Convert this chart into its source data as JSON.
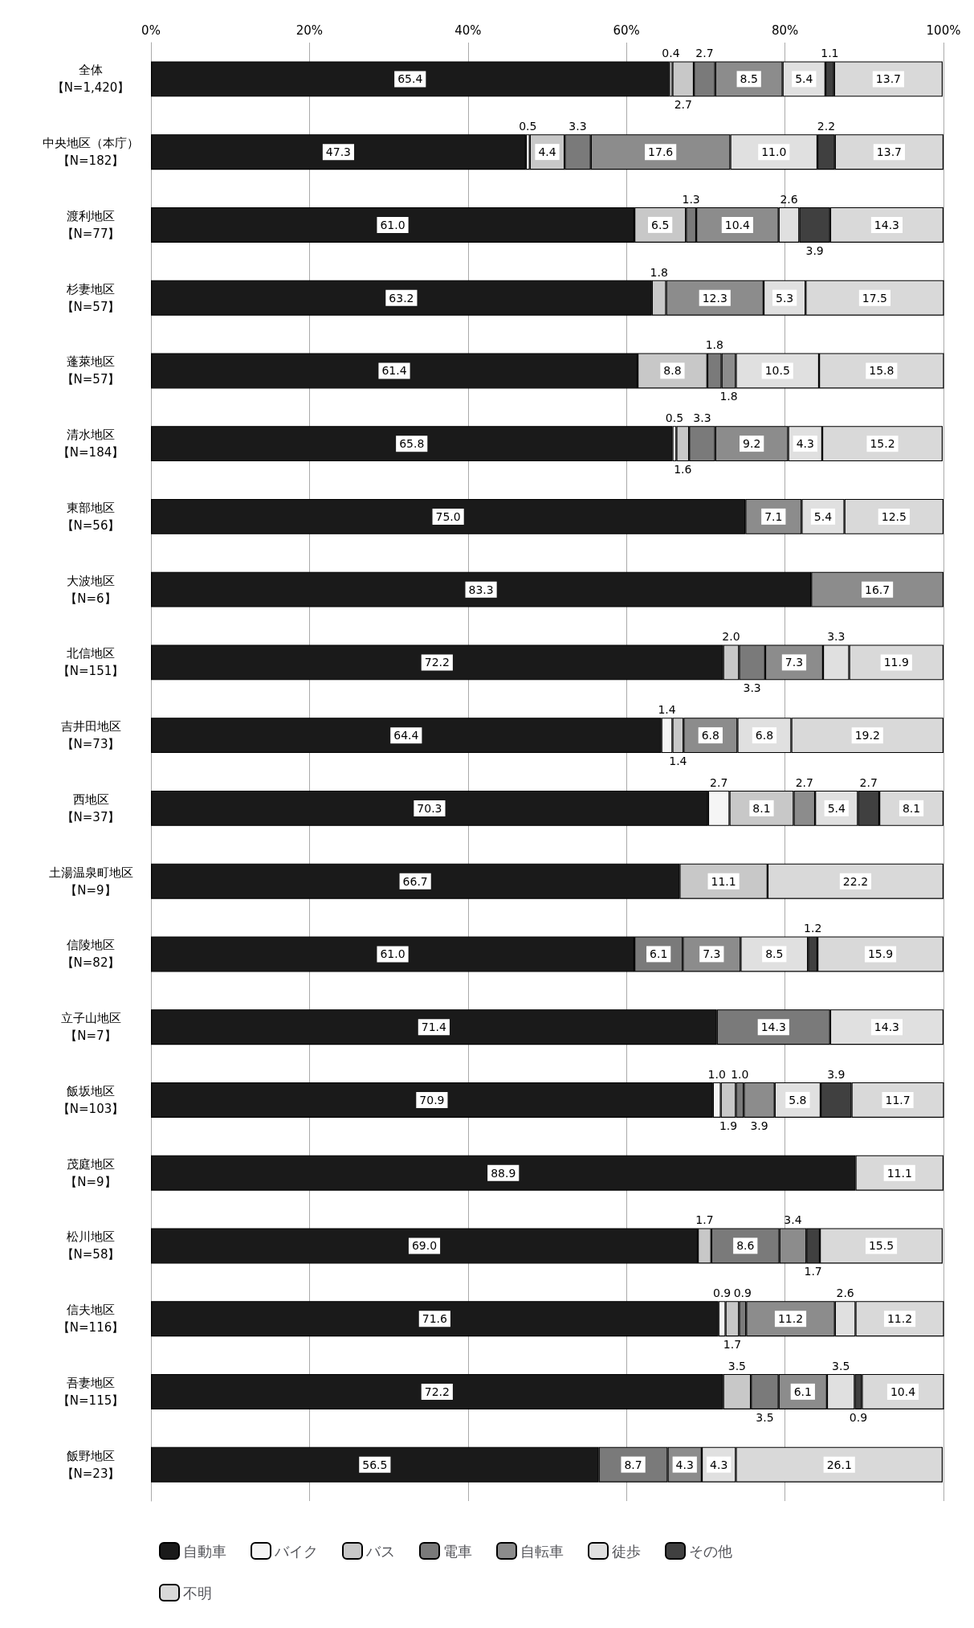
{
  "chart_data": {
    "type": "bar",
    "orientation": "horizontal",
    "stacked": true,
    "categories": [
      "全体【N=1,420】",
      "中央地区（本庁）【N=182】",
      "渡利地区【N=77】",
      "杉妻地区【N=57】",
      "蓬萊地区【N=57】",
      "清水地区【N=184】",
      "東部地区【N=56】",
      "大波地区【N=6】",
      "北信地区【N=151】",
      "吉井田地区【N=73】",
      "西地区【N=37】",
      "土湯温泉町地区【N=9】",
      "信陵地区【N=82】",
      "立子山地区【N=7】",
      "飯坂地区【N=103】",
      "茂庭地区【N=9】",
      "松川地区【N=58】",
      "信夫地区【N=116】",
      "吾妻地区【N=115】",
      "飯野地区【N=23】"
    ],
    "series": [
      {
        "name": "自動車",
        "color": "#1a1a1a",
        "values": [
          65.4,
          47.3,
          61.0,
          63.2,
          61.4,
          65.8,
          75.0,
          83.3,
          72.2,
          64.4,
          70.3,
          66.7,
          61.0,
          71.4,
          70.9,
          88.9,
          69.0,
          71.6,
          72.2,
          56.5
        ],
        "value_labels": [
          "65.4",
          "47.3",
          "61.0",
          "63.2",
          "61.4",
          "65.8",
          "75.0",
          "83.3",
          "72.2",
          "64.4",
          "70.3",
          "66.7",
          "61.0",
          "71.4",
          "70.9",
          "88.9",
          "69.0",
          "71.6",
          "72.2",
          "56.5"
        ]
      },
      {
        "name": "バイク",
        "color": "#f5f5f5",
        "values": [
          0.4,
          0.5,
          null,
          null,
          null,
          0.5,
          null,
          null,
          null,
          1.4,
          2.7,
          null,
          null,
          null,
          1.0,
          null,
          null,
          0.9,
          null,
          null
        ],
        "value_labels": [
          "0.4",
          "0.5",
          null,
          null,
          null,
          "0.5",
          null,
          null,
          null,
          "1.4",
          "2.7",
          null,
          null,
          null,
          "1.0",
          null,
          null,
          "0.9",
          null,
          null
        ]
      },
      {
        "name": "バス",
        "color": "#c8c8c8",
        "values": [
          2.7,
          4.4,
          6.5,
          1.8,
          8.8,
          1.6,
          null,
          null,
          2.0,
          1.4,
          8.1,
          11.1,
          null,
          null,
          1.9,
          null,
          1.7,
          1.7,
          3.5,
          null
        ],
        "value_labels": [
          "2.7",
          "4.4",
          "6.5",
          "1.8",
          "8.8",
          "1.6",
          null,
          null,
          "2.0",
          "1.4",
          "8.1",
          "11.1",
          null,
          null,
          "1.9",
          null,
          "1.7",
          "1.7",
          "3.5",
          null
        ]
      },
      {
        "name": "電車",
        "color": "#7a7a7a",
        "values": [
          2.7,
          3.3,
          1.3,
          null,
          1.8,
          3.3,
          null,
          null,
          3.3,
          null,
          null,
          null,
          6.1,
          14.3,
          1.0,
          null,
          8.6,
          0.9,
          3.5,
          8.7
        ],
        "value_labels": [
          "2.7",
          "3.3",
          "1.3",
          null,
          "1.8",
          "3.3",
          null,
          null,
          "3.3",
          null,
          null,
          null,
          "6.1",
          "14.3",
          "1.0",
          null,
          "8.6",
          "0.9",
          "3.5",
          "8.7"
        ]
      },
      {
        "name": "自転車",
        "color": "#8c8c8c",
        "values": [
          8.5,
          17.6,
          10.4,
          12.3,
          1.8,
          9.2,
          7.1,
          16.7,
          7.3,
          6.8,
          2.7,
          null,
          7.3,
          null,
          3.9,
          null,
          3.4,
          11.2,
          6.1,
          4.3
        ],
        "value_labels": [
          "8.5",
          "17.6",
          "10.4",
          "12.3",
          "1.8",
          "9.2",
          "7.1",
          "16.7",
          "7.3",
          "6.8",
          "2.7",
          null,
          "7.3",
          null,
          "3.9",
          null,
          "3.4",
          "11.2",
          "6.1",
          "4.3"
        ]
      },
      {
        "name": "徒歩",
        "color": "#e0e0e0",
        "values": [
          5.4,
          11.0,
          2.6,
          5.3,
          10.5,
          4.3,
          5.4,
          null,
          3.3,
          6.8,
          5.4,
          null,
          8.5,
          14.3,
          5.8,
          null,
          null,
          2.6,
          3.5,
          4.3
        ],
        "value_labels": [
          "5.4",
          "11.0",
          "2.6",
          "5.3",
          "10.5",
          "4.3",
          "5.4",
          null,
          "3.3",
          "6.8",
          "5.4",
          null,
          "8.5",
          "14.3",
          "5.8",
          null,
          null,
          "2.6",
          "3.5",
          "4.3"
        ]
      },
      {
        "name": "その他",
        "color": "#404040",
        "values": [
          1.1,
          2.2,
          3.9,
          null,
          null,
          null,
          null,
          null,
          null,
          null,
          2.7,
          null,
          1.2,
          null,
          3.9,
          null,
          1.7,
          null,
          0.9,
          null
        ],
        "value_labels": [
          "1.1",
          "2.2",
          "3.9",
          null,
          null,
          null,
          null,
          null,
          null,
          null,
          "2.7",
          null,
          "1.2",
          null,
          "3.9",
          null,
          "1.7",
          null,
          "0.9",
          null
        ]
      },
      {
        "name": "不明",
        "color": "#d9d9d9",
        "values": [
          13.7,
          13.7,
          14.3,
          17.5,
          15.8,
          15.2,
          12.5,
          null,
          11.9,
          19.2,
          8.1,
          22.2,
          15.9,
          null,
          11.7,
          11.1,
          15.5,
          11.2,
          10.4,
          26.1
        ],
        "value_labels": [
          "13.7",
          "13.7",
          "14.3",
          "17.5",
          "15.8",
          "15.2",
          "12.5",
          null,
          "11.9",
          "19.2",
          "8.1",
          "22.2",
          "15.9",
          null,
          "11.7",
          "11.1",
          "15.5",
          "11.2",
          "10.4",
          "26.1"
        ]
      }
    ],
    "xlim": [
      0,
      100
    ],
    "xticks": [
      {
        "value": 0,
        "label": "0%"
      },
      {
        "value": 20,
        "label": "20%"
      },
      {
        "value": 40,
        "label": "40%"
      },
      {
        "value": 60,
        "label": "60%"
      },
      {
        "value": 80,
        "label": "80%"
      },
      {
        "value": 100,
        "label": "100%"
      }
    ],
    "grid": "x",
    "legend": "bottom"
  }
}
